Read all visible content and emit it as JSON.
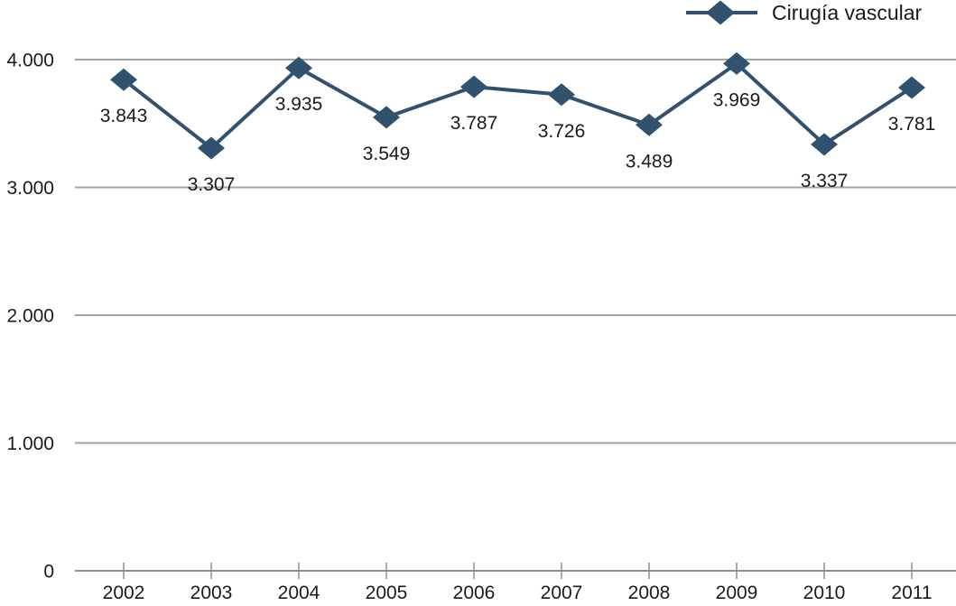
{
  "legend": {
    "label": "Cirugía vascular"
  },
  "chart_data": {
    "type": "line",
    "title": "",
    "xlabel": "",
    "ylabel": "",
    "categories": [
      "2002",
      "2003",
      "2004",
      "2005",
      "2006",
      "2007",
      "2008",
      "2009",
      "2010",
      "2011"
    ],
    "series": [
      {
        "name": "Cirugía vascular",
        "values": [
          3843,
          3307,
          3935,
          3549,
          3787,
          3726,
          3489,
          3969,
          3337,
          3781
        ],
        "labels": [
          "3.843",
          "3.307",
          "3.935",
          "3.549",
          "3.787",
          "3.726",
          "3.489",
          "3.969",
          "3.337",
          "3.781"
        ],
        "marker": "diamond"
      }
    ],
    "ylim": [
      0,
      4000
    ],
    "yticks": [
      {
        "value": 0,
        "label": "0"
      },
      {
        "value": 1000,
        "label": "1.000"
      },
      {
        "value": 2000,
        "label": "2.000"
      },
      {
        "value": 3000,
        "label": "3.000"
      },
      {
        "value": 4000,
        "label": "4.000"
      }
    ],
    "grid": "horizontal",
    "legend_position": "top-right",
    "colors": {
      "series": "#31526E",
      "gridline": "#a3a3a3",
      "axis": "#8f8f8f",
      "text": "#1a1a1a"
    }
  }
}
